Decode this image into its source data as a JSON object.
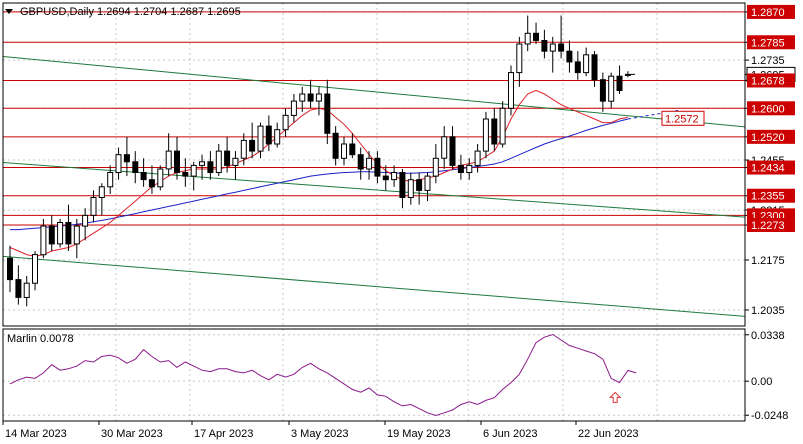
{
  "header": {
    "symbol_line": "GBPUSD,Daily  1.2694 1.2704 1.2687 1.2695"
  },
  "colors": {
    "background": "#ffffff",
    "grid": "#c8c8c8",
    "candle": "#000000",
    "level_line": "#cc0000",
    "level_box_text": "#cc0000",
    "channel_green": "#1e7a3c",
    "ma_red": "#e0202a",
    "ma_blue": "#1a22c8",
    "oscillator": "#8a1a8a",
    "signal_arrow": "#e03030",
    "border": "#000000"
  },
  "chart_data": [
    {
      "type": "candlestick",
      "title": "GBPUSD,Daily  1.2694 1.2704 1.2687 1.2695",
      "y_ticks": [
        "1.2870",
        "1.2785",
        "1.2735",
        "1.2695",
        "1.2678",
        "1.2600",
        "1.2572",
        "1.2520",
        "1.2455",
        "1.2434",
        "1.2355",
        "1.2315",
        "1.2300",
        "1.2273",
        "1.2175",
        "1.2035"
      ],
      "ylim": [
        1.199,
        1.2895
      ],
      "grid": true,
      "x_labels": [
        "14 Mar 2023",
        "30 Mar 2023",
        "17 Apr 2023",
        "3 May 2023",
        "19 May 2023",
        "6 Jun 2023",
        "22 Jun 2023"
      ],
      "levels": [
        {
          "value": 1.287,
          "label": "1.2870"
        },
        {
          "value": 1.2785,
          "label": "1.2785"
        },
        {
          "value": 1.2678,
          "label": "1.2678"
        },
        {
          "value": 1.26,
          "label": "1.2600"
        },
        {
          "value": 1.252,
          "label": "1.2520"
        },
        {
          "value": 1.2434,
          "label": "1.2434"
        },
        {
          "value": 1.2355,
          "label": "1.2355"
        },
        {
          "value": 1.23,
          "label": "1.2300"
        },
        {
          "value": 1.2273,
          "label": "1.2273"
        }
      ],
      "current_price": {
        "value": 1.2695,
        "label": "1.2695"
      },
      "ma_value_label": {
        "value": 1.2572,
        "label": "1.2572"
      },
      "candles": [
        [
          1.218,
          1.2215,
          1.2085,
          1.212
        ],
        [
          1.212,
          1.216,
          1.205,
          1.207
        ],
        [
          1.207,
          1.213,
          1.2045,
          1.211
        ],
        [
          1.211,
          1.22,
          1.209,
          1.219
        ],
        [
          1.219,
          1.229,
          1.218,
          1.227
        ],
        [
          1.227,
          1.23,
          1.22,
          1.222
        ],
        [
          1.222,
          1.229,
          1.221,
          1.228
        ],
        [
          1.228,
          1.233,
          1.22,
          1.222
        ],
        [
          1.222,
          1.229,
          1.218,
          1.227
        ],
        [
          1.227,
          1.232,
          1.223,
          1.23
        ],
        [
          1.23,
          1.237,
          1.228,
          1.235
        ],
        [
          1.235,
          1.239,
          1.23,
          1.238
        ],
        [
          1.238,
          1.244,
          1.236,
          1.242
        ],
        [
          1.242,
          1.249,
          1.24,
          1.247
        ],
        [
          1.247,
          1.252,
          1.241,
          1.245
        ],
        [
          1.245,
          1.248,
          1.239,
          1.242
        ],
        [
          1.242,
          1.246,
          1.238,
          1.24
        ],
        [
          1.24,
          1.244,
          1.236,
          1.238
        ],
        [
          1.238,
          1.244,
          1.237,
          1.243
        ],
        [
          1.243,
          1.253,
          1.241,
          1.248
        ],
        [
          1.248,
          1.252,
          1.24,
          1.242
        ],
        [
          1.242,
          1.246,
          1.238,
          1.241
        ],
        [
          1.241,
          1.245,
          1.237,
          1.244
        ],
        [
          1.244,
          1.247,
          1.24,
          1.245
        ],
        [
          1.245,
          1.248,
          1.24,
          1.242
        ],
        [
          1.242,
          1.25,
          1.241,
          1.248
        ],
        [
          1.248,
          1.252,
          1.242,
          1.244
        ],
        [
          1.244,
          1.248,
          1.24,
          1.246
        ],
        [
          1.246,
          1.253,
          1.244,
          1.251
        ],
        [
          1.251,
          1.256,
          1.246,
          1.248
        ],
        [
          1.248,
          1.256,
          1.246,
          1.255
        ],
        [
          1.255,
          1.258,
          1.248,
          1.25
        ],
        [
          1.25,
          1.256,
          1.249,
          1.254
        ],
        [
          1.254,
          1.26,
          1.252,
          1.258
        ],
        [
          1.258,
          1.264,
          1.256,
          1.262
        ],
        [
          1.262,
          1.266,
          1.259,
          1.264
        ],
        [
          1.264,
          1.268,
          1.26,
          1.262
        ],
        [
          1.262,
          1.266,
          1.258,
          1.264
        ],
        [
          1.264,
          1.268,
          1.25,
          1.253
        ],
        [
          1.253,
          1.255,
          1.244,
          1.246
        ],
        [
          1.246,
          1.252,
          1.244,
          1.25
        ],
        [
          1.25,
          1.253,
          1.246,
          1.247
        ],
        [
          1.247,
          1.249,
          1.24,
          1.243
        ],
        [
          1.243,
          1.248,
          1.24,
          1.246
        ],
        [
          1.246,
          1.248,
          1.239,
          1.241
        ],
        [
          1.241,
          1.244,
          1.237,
          1.24
        ],
        [
          1.24,
          1.244,
          1.238,
          1.242
        ],
        [
          1.242,
          1.243,
          1.232,
          1.235
        ],
        [
          1.235,
          1.242,
          1.233,
          1.24
        ],
        [
          1.24,
          1.242,
          1.233,
          1.237
        ],
        [
          1.237,
          1.242,
          1.234,
          1.241
        ],
        [
          1.241,
          1.25,
          1.239,
          1.246
        ],
        [
          1.246,
          1.255,
          1.243,
          1.252
        ],
        [
          1.252,
          1.255,
          1.243,
          1.244
        ],
        [
          1.244,
          1.247,
          1.24,
          1.242
        ],
        [
          1.242,
          1.246,
          1.24,
          1.244
        ],
        [
          1.244,
          1.25,
          1.242,
          1.248
        ],
        [
          1.248,
          1.259,
          1.246,
          1.257
        ],
        [
          1.257,
          1.26,
          1.248,
          1.25
        ],
        [
          1.25,
          1.262,
          1.249,
          1.26
        ],
        [
          1.26,
          1.272,
          1.258,
          1.27
        ],
        [
          1.27,
          1.28,
          1.266,
          1.278
        ],
        [
          1.278,
          1.286,
          1.276,
          1.281
        ],
        [
          1.281,
          1.284,
          1.278,
          1.279
        ],
        [
          1.279,
          1.282,
          1.274,
          1.276
        ],
        [
          1.276,
          1.28,
          1.27,
          1.278
        ],
        [
          1.278,
          1.286,
          1.274,
          1.276
        ],
        [
          1.276,
          1.279,
          1.27,
          1.273
        ],
        [
          1.273,
          1.276,
          1.268,
          1.27
        ],
        [
          1.27,
          1.277,
          1.269,
          1.275
        ],
        [
          1.275,
          1.276,
          1.266,
          1.268
        ],
        [
          1.268,
          1.27,
          1.259,
          1.262
        ],
        [
          1.262,
          1.27,
          1.26,
          1.269
        ],
        [
          1.269,
          1.272,
          1.264,
          1.265
        ],
        [
          1.2694,
          1.2704,
          1.2687,
          1.2695
        ]
      ],
      "ma_red": [
        1.221,
        1.22,
        1.219,
        1.2185,
        1.219,
        1.22,
        1.2205,
        1.221,
        1.222,
        1.2235,
        1.225,
        1.2265,
        1.228,
        1.23,
        1.232,
        1.234,
        1.236,
        1.238,
        1.2395,
        1.241,
        1.242,
        1.2425,
        1.243,
        1.243,
        1.243,
        1.243,
        1.2435,
        1.2445,
        1.2455,
        1.2465,
        1.248,
        1.25,
        1.252,
        1.254,
        1.256,
        1.258,
        1.2595,
        1.26,
        1.2595,
        1.2575,
        1.2555,
        1.253,
        1.25,
        1.247,
        1.2445,
        1.2425,
        1.241,
        1.24,
        1.2395,
        1.24,
        1.2405,
        1.241,
        1.242,
        1.243,
        1.244,
        1.2445,
        1.245,
        1.2465,
        1.248,
        1.252,
        1.257,
        1.261,
        1.264,
        1.265,
        1.264,
        1.2625,
        1.261,
        1.26,
        1.259,
        1.258,
        1.257,
        1.256,
        1.256,
        1.257,
        1.2575
      ],
      "ma_blue": [
        1.226,
        1.226,
        1.2262,
        1.2264,
        1.2266,
        1.2268,
        1.227,
        1.2272,
        1.2275,
        1.2278,
        1.2282,
        1.2286,
        1.229,
        1.2295,
        1.23,
        1.2305,
        1.231,
        1.2315,
        1.232,
        1.2325,
        1.233,
        1.2335,
        1.234,
        1.2345,
        1.235,
        1.2355,
        1.236,
        1.2365,
        1.237,
        1.2375,
        1.238,
        1.2385,
        1.239,
        1.2395,
        1.24,
        1.2405,
        1.241,
        1.2413,
        1.2416,
        1.2418,
        1.242,
        1.2421,
        1.2422,
        1.2422,
        1.2421,
        1.242,
        1.2419,
        1.2418,
        1.2418,
        1.2419,
        1.242,
        1.2422,
        1.2425,
        1.2428,
        1.2431,
        1.2434,
        1.2437,
        1.244,
        1.2444,
        1.245,
        1.246,
        1.247,
        1.248,
        1.249,
        1.25,
        1.2508,
        1.2515,
        1.2522,
        1.253,
        1.2538,
        1.2545,
        1.2552,
        1.2558,
        1.2564,
        1.257
      ],
      "ma_blue_projection": [
        1.257,
        1.2574,
        1.2578,
        1.2582,
        1.2586,
        1.259,
        1.2594
      ],
      "green_lines": [
        {
          "from": 1.2745,
          "to": 1.2548
        },
        {
          "from": 1.2448,
          "to": 1.2295
        },
        {
          "from": 1.2185,
          "to": 1.2017
        }
      ]
    },
    {
      "type": "line",
      "title": "Marlin 0.0078",
      "y_ticks": [
        "0.0338",
        "0.00",
        "-0.0248"
      ],
      "ylim": [
        -0.029,
        0.038
      ],
      "grid": true,
      "series": [
        {
          "name": "Marlin",
          "values": [
            -0.002,
            0.001,
            0.003,
            0.002,
            0.006,
            0.012,
            0.008,
            0.009,
            0.011,
            0.015,
            0.014,
            0.018,
            0.019,
            0.017,
            0.013,
            0.016,
            0.023,
            0.018,
            0.014,
            0.015,
            0.01,
            0.014,
            0.011,
            0.008,
            0.007,
            0.009,
            0.009,
            0.007,
            0.006,
            0.008,
            0.004,
            0.001,
            0.005,
            0.003,
            0.005,
            0.01,
            0.013,
            0.009,
            0.006,
            0.002,
            -0.002,
            -0.006,
            -0.008,
            -0.005,
            -0.01,
            -0.011,
            -0.015,
            -0.018,
            -0.017,
            -0.02,
            -0.023,
            -0.025,
            -0.023,
            -0.021,
            -0.017,
            -0.015,
            -0.017,
            -0.014,
            -0.012,
            -0.006,
            -0.001,
            0.005,
            0.016,
            0.028,
            0.032,
            0.034,
            0.03,
            0.026,
            0.024,
            0.022,
            0.02,
            0.016,
            0.002,
            -0.001,
            0.0078,
            0.006
          ]
        }
      ],
      "signal_arrow_index": 72
    }
  ]
}
